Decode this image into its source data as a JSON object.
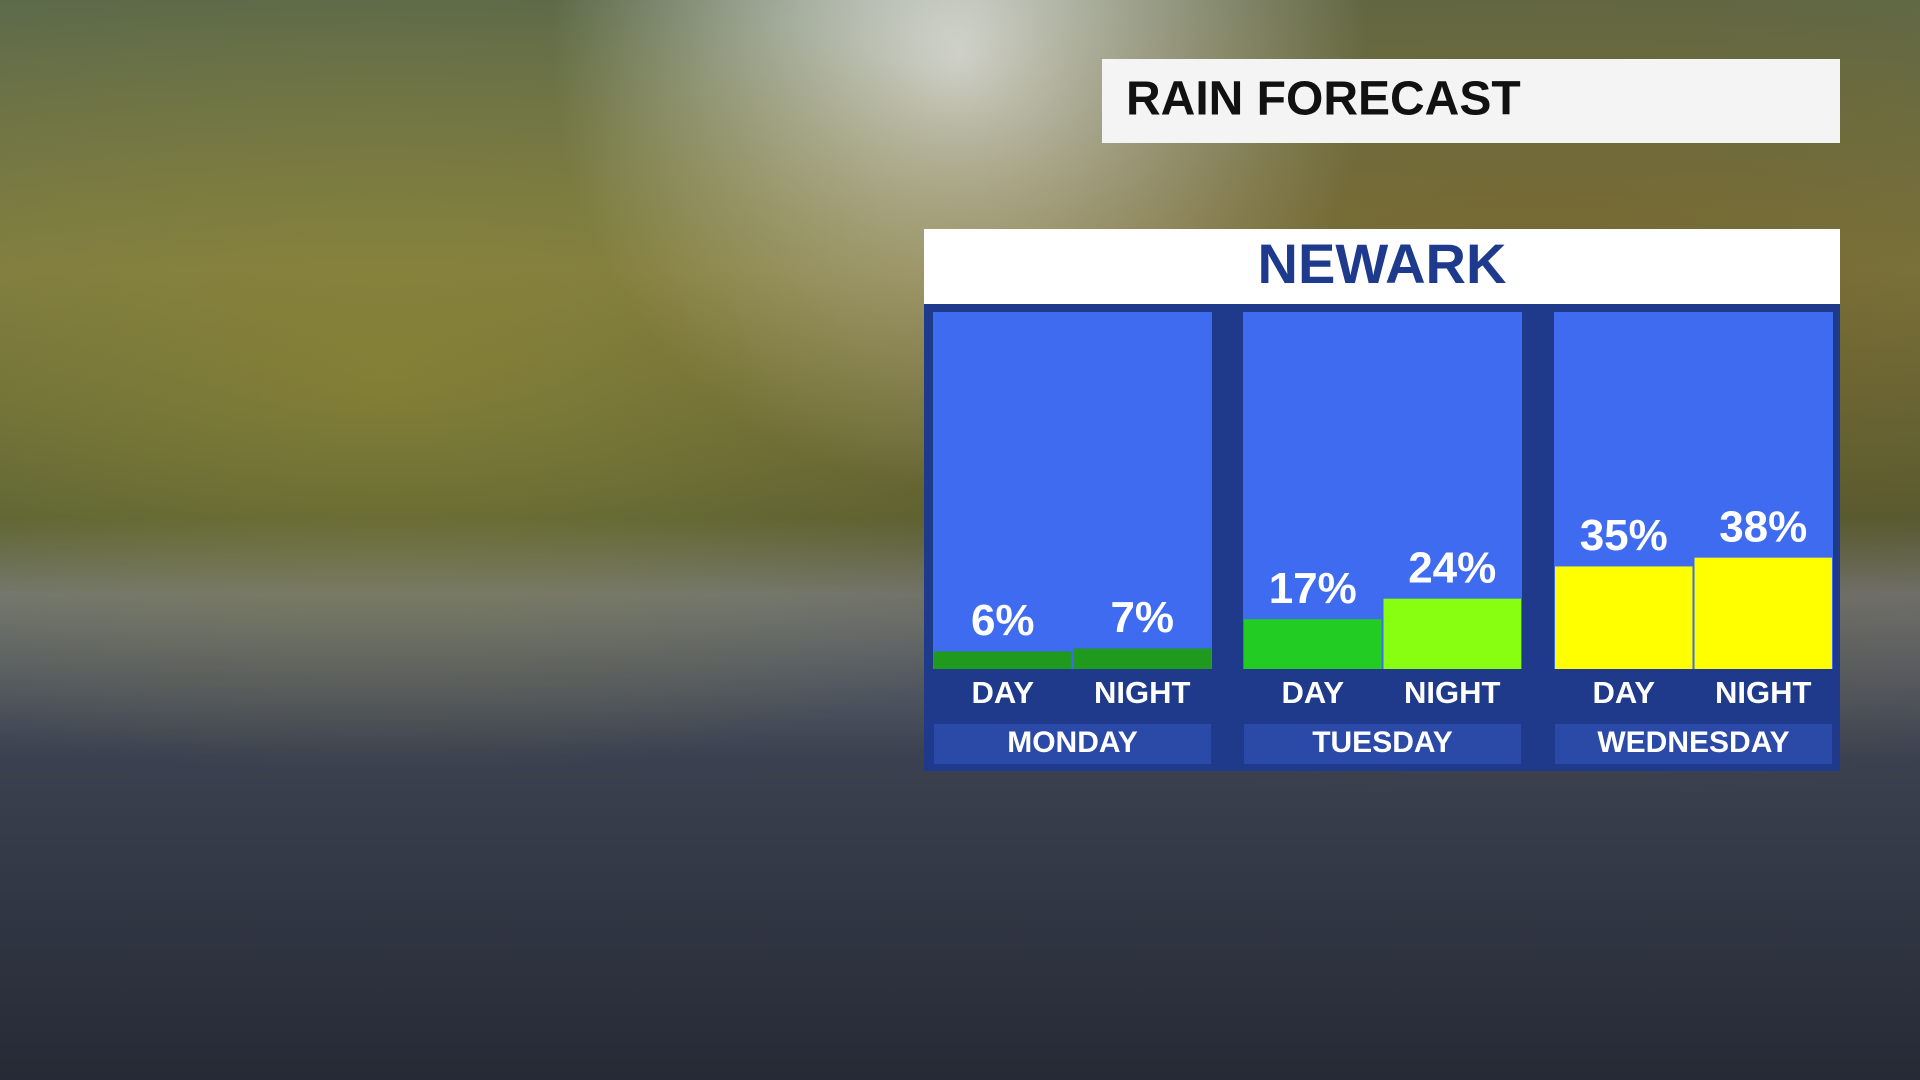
{
  "chart_data": {
    "type": "bar",
    "title": "RAIN FORECAST",
    "subtitle": "NEWARK",
    "groups": [
      {
        "name": "MONDAY",
        "categories": [
          "DAY",
          "NIGHT"
        ],
        "values": [
          6,
          7
        ],
        "value_labels": [
          "6%",
          "7%"
        ],
        "colors": [
          "#1f9a1f",
          "#1f9a1f"
        ]
      },
      {
        "name": "TUESDAY",
        "categories": [
          "DAY",
          "NIGHT"
        ],
        "values": [
          17,
          24
        ],
        "value_labels": [
          "17%",
          "24%"
        ],
        "colors": [
          "#22cc22",
          "#88ff11"
        ]
      },
      {
        "name": "WEDNESDAY",
        "categories": [
          "DAY",
          "NIGHT"
        ],
        "values": [
          35,
          38
        ],
        "value_labels": [
          "35%",
          "38%"
        ],
        "colors": [
          "#ffff00",
          "#ffff00"
        ]
      }
    ]
  }
}
